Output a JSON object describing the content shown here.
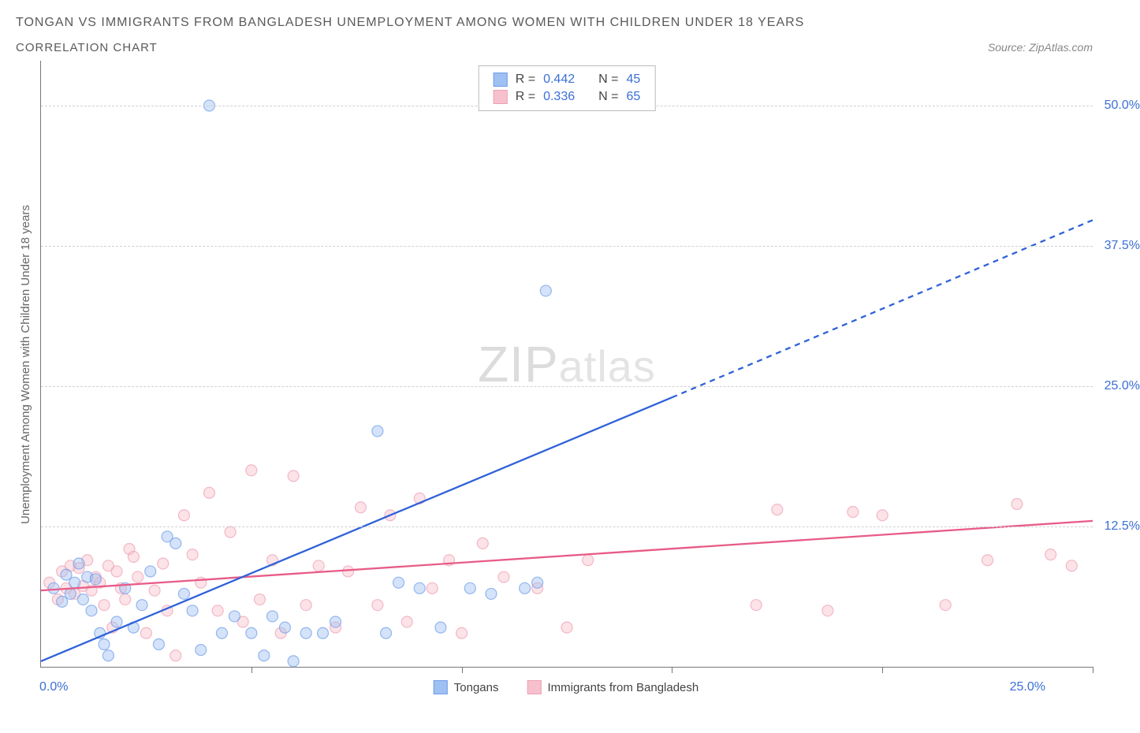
{
  "title": "TONGAN VS IMMIGRANTS FROM BANGLADESH UNEMPLOYMENT AMONG WOMEN WITH CHILDREN UNDER 18 YEARS",
  "subtitle": "CORRELATION CHART",
  "source": "Source: ZipAtlas.com",
  "ylabel": "Unemployment Among Women with Children Under 18 years",
  "watermark_big": "ZIP",
  "watermark_small": "atlas",
  "chart": {
    "type": "scatter",
    "xlim": [
      0,
      25
    ],
    "ylim": [
      0,
      54
    ],
    "xtick_positions": [
      0,
      5,
      10,
      15,
      20,
      25
    ],
    "xaxis_min_label": "0.0%",
    "xaxis_max_label": "25.0%",
    "yticks": [
      {
        "v": 12.5,
        "label": "12.5%"
      },
      {
        "v": 25.0,
        "label": "25.0%"
      },
      {
        "v": 37.5,
        "label": "37.5%"
      },
      {
        "v": 50.0,
        "label": "50.0%"
      }
    ],
    "background_color": "#ffffff",
    "grid_color": "#d0d0d0",
    "axis_color": "#777777",
    "tick_label_color": "#3b6fd6",
    "marker_radius": 7,
    "marker_opacity": 0.45,
    "marker_stroke_width": 1.2,
    "line_width": 2.3,
    "series": [
      {
        "name": "Tongans",
        "color_fill": "#9fc0f2",
        "color_stroke": "#6f9de8",
        "line_color": "#2f62d9",
        "R": "0.442",
        "N": "45",
        "trend_start": [
          0.0,
          0.5
        ],
        "trend_solid_end": [
          15.0,
          24.0
        ],
        "trend_dash_end": [
          25.0,
          39.8
        ],
        "points": [
          [
            0.3,
            7.0
          ],
          [
            0.5,
            5.8
          ],
          [
            0.6,
            8.2
          ],
          [
            0.7,
            6.5
          ],
          [
            0.8,
            7.5
          ],
          [
            0.9,
            9.2
          ],
          [
            1.0,
            6.0
          ],
          [
            1.1,
            8.0
          ],
          [
            1.2,
            5.0
          ],
          [
            1.3,
            7.8
          ],
          [
            1.4,
            3.0
          ],
          [
            1.5,
            2.0
          ],
          [
            1.6,
            1.0
          ],
          [
            1.8,
            4.0
          ],
          [
            2.0,
            7.0
          ],
          [
            2.2,
            3.5
          ],
          [
            2.4,
            5.5
          ],
          [
            2.6,
            8.5
          ],
          [
            2.8,
            2.0
          ],
          [
            3.0,
            11.6
          ],
          [
            3.2,
            11.0
          ],
          [
            3.4,
            6.5
          ],
          [
            3.6,
            5.0
          ],
          [
            3.8,
            1.5
          ],
          [
            4.0,
            50.0
          ],
          [
            4.3,
            3.0
          ],
          [
            4.6,
            4.5
          ],
          [
            5.0,
            3.0
          ],
          [
            5.3,
            1.0
          ],
          [
            5.5,
            4.5
          ],
          [
            5.8,
            3.5
          ],
          [
            6.0,
            0.5
          ],
          [
            6.3,
            3.0
          ],
          [
            6.7,
            3.0
          ],
          [
            7.0,
            4.0
          ],
          [
            8.0,
            21.0
          ],
          [
            8.2,
            3.0
          ],
          [
            8.5,
            7.5
          ],
          [
            9.0,
            7.0
          ],
          [
            9.5,
            3.5
          ],
          [
            10.2,
            7.0
          ],
          [
            10.7,
            6.5
          ],
          [
            11.5,
            7.0
          ],
          [
            11.8,
            7.5
          ],
          [
            12.0,
            33.5
          ]
        ]
      },
      {
        "name": "Immigrants from Bangladesh",
        "color_fill": "#f6c1cd",
        "color_stroke": "#eea0b4",
        "line_color": "#e85b87",
        "R": "0.336",
        "N": "65",
        "trend_start": [
          0.0,
          6.8
        ],
        "trend_solid_end": [
          25.0,
          13.0
        ],
        "trend_dash_end": null,
        "points": [
          [
            0.2,
            7.5
          ],
          [
            0.4,
            6.0
          ],
          [
            0.5,
            8.5
          ],
          [
            0.6,
            7.0
          ],
          [
            0.7,
            9.0
          ],
          [
            0.8,
            6.5
          ],
          [
            0.9,
            8.8
          ],
          [
            1.0,
            7.2
          ],
          [
            1.1,
            9.5
          ],
          [
            1.2,
            6.8
          ],
          [
            1.3,
            8.0
          ],
          [
            1.4,
            7.5
          ],
          [
            1.5,
            5.5
          ],
          [
            1.6,
            9.0
          ],
          [
            1.7,
            3.5
          ],
          [
            1.8,
            8.5
          ],
          [
            1.9,
            7.0
          ],
          [
            2.0,
            6.0
          ],
          [
            2.1,
            10.5
          ],
          [
            2.2,
            9.8
          ],
          [
            2.3,
            8.0
          ],
          [
            2.5,
            3.0
          ],
          [
            2.7,
            6.8
          ],
          [
            2.9,
            9.2
          ],
          [
            3.0,
            5.0
          ],
          [
            3.2,
            1.0
          ],
          [
            3.4,
            13.5
          ],
          [
            3.6,
            10.0
          ],
          [
            3.8,
            7.5
          ],
          [
            4.0,
            15.5
          ],
          [
            4.2,
            5.0
          ],
          [
            4.5,
            12.0
          ],
          [
            4.8,
            4.0
          ],
          [
            5.0,
            17.5
          ],
          [
            5.2,
            6.0
          ],
          [
            5.5,
            9.5
          ],
          [
            5.7,
            3.0
          ],
          [
            6.0,
            17.0
          ],
          [
            6.3,
            5.5
          ],
          [
            6.6,
            9.0
          ],
          [
            7.0,
            3.5
          ],
          [
            7.3,
            8.5
          ],
          [
            7.6,
            14.2
          ],
          [
            8.0,
            5.5
          ],
          [
            8.3,
            13.5
          ],
          [
            8.7,
            4.0
          ],
          [
            9.0,
            15.0
          ],
          [
            9.3,
            7.0
          ],
          [
            9.7,
            9.5
          ],
          [
            10.0,
            3.0
          ],
          [
            10.5,
            11.0
          ],
          [
            11.0,
            8.0
          ],
          [
            11.8,
            7.0
          ],
          [
            12.5,
            3.5
          ],
          [
            13.0,
            9.5
          ],
          [
            17.0,
            5.5
          ],
          [
            17.5,
            14.0
          ],
          [
            18.7,
            5.0
          ],
          [
            19.3,
            13.8
          ],
          [
            20.0,
            13.5
          ],
          [
            21.5,
            5.5
          ],
          [
            22.5,
            9.5
          ],
          [
            23.2,
            14.5
          ],
          [
            24.0,
            10.0
          ],
          [
            24.5,
            9.0
          ]
        ]
      }
    ]
  },
  "stats_label_R": "R =",
  "stats_label_N": "N ="
}
